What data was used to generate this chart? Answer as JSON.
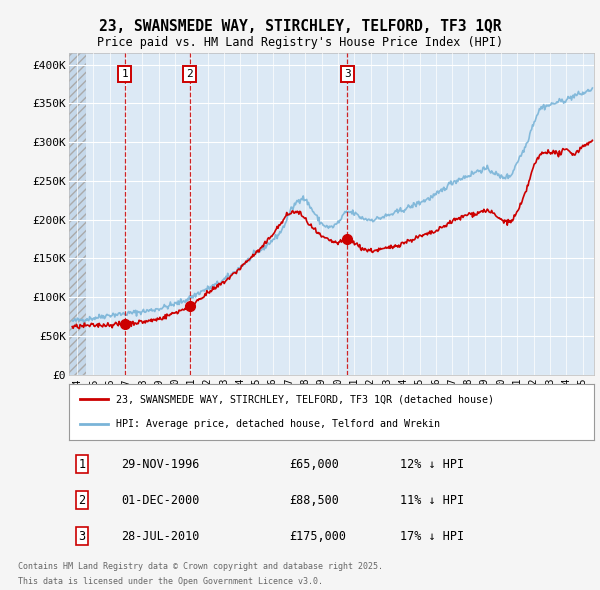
{
  "title": "23, SWANSMEDE WAY, STIRCHLEY, TELFORD, TF3 1QR",
  "subtitle": "Price paid vs. HM Land Registry's House Price Index (HPI)",
  "ylabel_ticks": [
    "£0",
    "£50K",
    "£100K",
    "£150K",
    "£200K",
    "£250K",
    "£300K",
    "£350K",
    "£400K"
  ],
  "ytick_values": [
    0,
    50000,
    100000,
    150000,
    200000,
    250000,
    300000,
    350000,
    400000
  ],
  "ylim": [
    0,
    415000
  ],
  "xlim_start": 1993.5,
  "xlim_end": 2025.7,
  "hpi_color": "#7ab4d8",
  "price_color": "#cc0000",
  "sale_line_color": "#cc0000",
  "plot_bg": "#dce9f5",
  "grid_color": "#ffffff",
  "sales": [
    {
      "year": 1996.91,
      "price": 65000,
      "label": "1",
      "date": "29-NOV-1996",
      "price_str": "£65,000",
      "pct": "12% ↓ HPI"
    },
    {
      "year": 2000.92,
      "price": 88500,
      "label": "2",
      "date": "01-DEC-2000",
      "price_str": "£88,500",
      "pct": "11% ↓ HPI"
    },
    {
      "year": 2010.57,
      "price": 175000,
      "label": "3",
      "date": "28-JUL-2010",
      "price_str": "£175,000",
      "pct": "17% ↓ HPI"
    }
  ],
  "legend_line1": "23, SWANSMEDE WAY, STIRCHLEY, TELFORD, TF3 1QR (detached house)",
  "legend_line2": "HPI: Average price, detached house, Telford and Wrekin",
  "footer1": "Contains HM Land Registry data © Crown copyright and database right 2025.",
  "footer2": "This data is licensed under the Open Government Licence v3.0.",
  "xtick_years": [
    1994,
    1995,
    1996,
    1997,
    1998,
    1999,
    2000,
    2001,
    2002,
    2003,
    2004,
    2005,
    2006,
    2007,
    2008,
    2009,
    2010,
    2011,
    2012,
    2013,
    2014,
    2015,
    2016,
    2017,
    2018,
    2019,
    2020,
    2021,
    2022,
    2023,
    2024,
    2025
  ],
  "hpi_anchors_x": [
    1993.5,
    1994.0,
    1995.0,
    1996.0,
    1996.91,
    1997.5,
    1998.5,
    1999.5,
    2000.5,
    2000.92,
    2001.5,
    2002.5,
    2003.5,
    2004.5,
    2005.5,
    2006.5,
    2007.2,
    2007.8,
    2008.5,
    2009.0,
    2009.5,
    2010.0,
    2010.57,
    2011.0,
    2011.5,
    2012.0,
    2013.0,
    2014.0,
    2015.0,
    2016.0,
    2017.0,
    2018.0,
    2019.0,
    2019.5,
    2020.0,
    2020.5,
    2021.0,
    2021.5,
    2022.0,
    2022.5,
    2023.0,
    2023.5,
    2024.0,
    2024.5,
    2025.0,
    2025.5
  ],
  "hpi_anchors_y": [
    68000,
    70000,
    73000,
    77000,
    78500,
    80000,
    83000,
    88000,
    95000,
    99000,
    106000,
    116000,
    130000,
    148000,
    165000,
    185000,
    215000,
    228000,
    210000,
    195000,
    190000,
    196000,
    210000,
    208000,
    202000,
    200000,
    205000,
    213000,
    222000,
    232000,
    248000,
    257000,
    265000,
    262000,
    255000,
    256000,
    275000,
    295000,
    325000,
    345000,
    348000,
    352000,
    355000,
    360000,
    363000,
    368000
  ],
  "price_anchors_x": [
    1993.5,
    1994.0,
    1995.0,
    1996.0,
    1996.5,
    1996.91,
    1997.5,
    1998.0,
    1999.0,
    2000.0,
    2000.92,
    2001.5,
    2002.5,
    2003.5,
    2004.5,
    2005.5,
    2006.0,
    2006.5,
    2007.0,
    2007.5,
    2008.0,
    2008.5,
    2009.0,
    2009.5,
    2010.0,
    2010.57,
    2011.0,
    2011.5,
    2012.0,
    2013.0,
    2014.0,
    2015.0,
    2016.0,
    2017.0,
    2017.5,
    2018.0,
    2018.5,
    2019.0,
    2019.5,
    2020.0,
    2020.5,
    2021.0,
    2021.5,
    2022.0,
    2022.5,
    2023.0,
    2023.5,
    2024.0,
    2024.5,
    2025.0,
    2025.5
  ],
  "price_anchors_y": [
    60000,
    62000,
    63500,
    64500,
    64800,
    65000,
    67000,
    68000,
    72000,
    80000,
    88500,
    98000,
    112000,
    128000,
    148000,
    168000,
    182000,
    195000,
    208000,
    210000,
    200000,
    188000,
    178000,
    173000,
    170000,
    175000,
    170000,
    163000,
    160000,
    163000,
    170000,
    178000,
    185000,
    198000,
    202000,
    207000,
    208000,
    212000,
    208000,
    200000,
    197000,
    210000,
    235000,
    268000,
    285000,
    288000,
    285000,
    290000,
    285000,
    295000,
    300000
  ]
}
